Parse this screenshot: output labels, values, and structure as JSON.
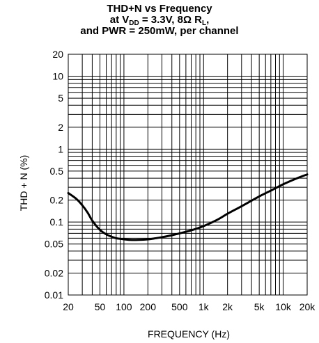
{
  "chart_data": {
    "type": "line",
    "title": {
      "line1": "THD+N vs Frequency",
      "line2_prefix": "at V",
      "line2_sub1": "DD",
      "line2_mid": " = 3.3V, 8Ω R",
      "line2_sub2": "L",
      "line2_suffix": ",",
      "line3": "and PWR = 250mW, per channel"
    },
    "xlabel": "FREQUENCY (Hz)",
    "ylabel": "THD + N (%)",
    "x_scale": "log",
    "y_scale": "log",
    "xlim": [
      20,
      20000
    ],
    "ylim": [
      0.01,
      20
    ],
    "grid": true,
    "x_ticks": [
      {
        "value": 20,
        "label": "20"
      },
      {
        "value": 50,
        "label": "50"
      },
      {
        "value": 100,
        "label": "100"
      },
      {
        "value": 200,
        "label": "200"
      },
      {
        "value": 500,
        "label": "500"
      },
      {
        "value": 1000,
        "label": "1k"
      },
      {
        "value": 2000,
        "label": "2k"
      },
      {
        "value": 5000,
        "label": "5k"
      },
      {
        "value": 10000,
        "label": "10k"
      },
      {
        "value": 20000,
        "label": "20k"
      }
    ],
    "y_ticks": [
      {
        "value": 20,
        "label": "20"
      },
      {
        "value": 10,
        "label": "10"
      },
      {
        "value": 5,
        "label": "5"
      },
      {
        "value": 2,
        "label": "2"
      },
      {
        "value": 1,
        "label": "1"
      },
      {
        "value": 0.5,
        "label": "0.5"
      },
      {
        "value": 0.2,
        "label": "0.2"
      },
      {
        "value": 0.1,
        "label": "0.1"
      },
      {
        "value": 0.05,
        "label": "0.05"
      },
      {
        "value": 0.02,
        "label": "0.02"
      },
      {
        "value": 0.01,
        "label": "0.01"
      }
    ],
    "series": [
      {
        "color": "#000000",
        "x": [
          20,
          25,
          30,
          35,
          40,
          50,
          60,
          70,
          80,
          100,
          120,
          150,
          200,
          250,
          300,
          400,
          500,
          700,
          1000,
          1500,
          2000,
          3000,
          5000,
          7000,
          10000,
          15000,
          20000
        ],
        "y": [
          0.25,
          0.21,
          0.17,
          0.135,
          0.105,
          0.078,
          0.068,
          0.063,
          0.06,
          0.058,
          0.057,
          0.057,
          0.058,
          0.06,
          0.062,
          0.066,
          0.07,
          0.077,
          0.088,
          0.108,
          0.13,
          0.165,
          0.225,
          0.27,
          0.33,
          0.4,
          0.45
        ]
      }
    ]
  }
}
